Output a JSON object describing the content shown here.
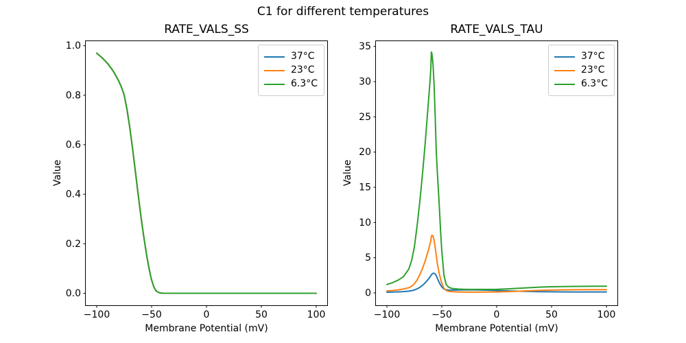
{
  "figure": {
    "suptitle": "C1 for different temperatures",
    "background": "#ffffff",
    "text_color": "#000000"
  },
  "chart_data": [
    {
      "type": "line",
      "title": "RATE_VALS_SS",
      "xlabel": "Membrane Potential (mV)",
      "ylabel": "Value",
      "xlim": [
        -110,
        110
      ],
      "ylim": [
        -0.0485,
        1.0185
      ],
      "grid": false,
      "legend_position": "upper-right",
      "xticks": {
        "values": [
          -100,
          -50,
          0,
          50,
          100
        ],
        "labels": [
          "−100",
          "−50",
          "0",
          "50",
          "100"
        ]
      },
      "yticks": {
        "values": [
          0,
          0.2,
          0.4,
          0.6,
          0.8,
          1.0
        ],
        "labels": [
          "0.0",
          "0.2",
          "0.4",
          "0.6",
          "0.8",
          "1.0"
        ]
      },
      "x": [
        -100,
        -95,
        -90,
        -85,
        -80,
        -77.5,
        -75,
        -72.5,
        -70,
        -67.5,
        -65,
        -62.5,
        -61,
        -60,
        -59.5,
        -59,
        -58,
        -57,
        -56,
        -55,
        -54,
        -52.5,
        -51,
        -50,
        -48,
        -46,
        -44,
        -42,
        -40,
        -35,
        -30,
        -25,
        -20,
        -10,
        0,
        10,
        20,
        30,
        40,
        50,
        60,
        70,
        80,
        90,
        100
      ],
      "series": [
        {
          "name": "37°C",
          "color": "#1f77b4",
          "values": [
            0.97,
            0.951,
            0.928,
            0.898,
            0.858,
            0.833,
            0.801,
            0.745,
            0.673,
            0.59,
            0.5,
            0.408,
            0.355,
            0.32,
            0.303,
            0.287,
            0.255,
            0.225,
            0.196,
            0.168,
            0.141,
            0.104,
            0.072,
            0.054,
            0.026,
            0.01,
            0.004,
            0.001,
            0.0005,
            0.0001,
            0,
            0,
            0,
            0,
            0,
            0,
            0,
            0,
            0,
            0,
            0,
            0,
            0,
            0,
            0
          ]
        },
        {
          "name": "23°C",
          "color": "#ff7f0e",
          "values": [
            0.97,
            0.951,
            0.928,
            0.898,
            0.858,
            0.833,
            0.801,
            0.745,
            0.673,
            0.59,
            0.5,
            0.408,
            0.355,
            0.32,
            0.303,
            0.287,
            0.255,
            0.225,
            0.196,
            0.168,
            0.141,
            0.104,
            0.072,
            0.054,
            0.026,
            0.01,
            0.004,
            0.001,
            0.0005,
            0.0001,
            0,
            0,
            0,
            0,
            0,
            0,
            0,
            0,
            0,
            0,
            0,
            0,
            0,
            0,
            0
          ]
        },
        {
          "name": "6.3°C",
          "color": "#2ca02c",
          "values": [
            0.97,
            0.951,
            0.928,
            0.898,
            0.858,
            0.833,
            0.801,
            0.745,
            0.673,
            0.59,
            0.5,
            0.408,
            0.355,
            0.32,
            0.303,
            0.287,
            0.255,
            0.225,
            0.196,
            0.168,
            0.141,
            0.104,
            0.072,
            0.054,
            0.026,
            0.01,
            0.004,
            0.001,
            0.0005,
            0.0001,
            0,
            0,
            0,
            0,
            0,
            0,
            0,
            0,
            0,
            0,
            0,
            0,
            0,
            0,
            0
          ]
        }
      ]
    },
    {
      "type": "line",
      "title": "RATE_VALS_TAU",
      "xlabel": "Membrane Potential (mV)",
      "ylabel": "Value",
      "xlim": [
        -110,
        110
      ],
      "ylim": [
        -1.75,
        35.75
      ],
      "grid": false,
      "legend_position": "upper-right",
      "xticks": {
        "values": [
          -100,
          -50,
          0,
          50,
          100
        ],
        "labels": [
          "−100",
          "−50",
          "0",
          "50",
          "100"
        ]
      },
      "yticks": {
        "values": [
          0,
          5,
          10,
          15,
          20,
          25,
          30,
          35
        ],
        "labels": [
          "0",
          "5",
          "10",
          "15",
          "20",
          "25",
          "30",
          "35"
        ]
      },
      "x": [
        -100,
        -95,
        -90,
        -85,
        -80,
        -77.5,
        -75,
        -72.5,
        -70,
        -67.5,
        -65,
        -62.5,
        -61,
        -60,
        -59.5,
        -59,
        -58,
        -57,
        -56,
        -55,
        -54,
        -52.5,
        -51,
        -50,
        -48,
        -46,
        -44,
        -42,
        -40,
        -35,
        -30,
        -25,
        -20,
        -10,
        0,
        10,
        20,
        30,
        40,
        50,
        60,
        70,
        80,
        90,
        100
      ],
      "series": [
        {
          "name": "37°C",
          "color": "#1f77b4",
          "values": [
            0.1,
            0.12,
            0.15,
            0.19,
            0.26,
            0.32,
            0.42,
            0.58,
            0.8,
            1.08,
            1.45,
            1.9,
            2.2,
            2.45,
            2.57,
            2.67,
            2.78,
            2.8,
            2.7,
            2.45,
            2.05,
            1.55,
            1.1,
            0.85,
            0.55,
            0.45,
            0.42,
            0.41,
            0.41,
            0.42,
            0.43,
            0.44,
            0.43,
            0.4,
            0.35,
            0.3,
            0.25,
            0.21,
            0.18,
            0.16,
            0.15,
            0.14,
            0.14,
            0.14,
            0.14
          ]
        },
        {
          "name": "23°C",
          "color": "#ff7f0e",
          "values": [
            0.3,
            0.35,
            0.43,
            0.55,
            0.75,
            0.95,
            1.3,
            1.85,
            2.6,
            3.5,
            4.6,
            5.9,
            6.8,
            7.4,
            8.0,
            8.2,
            8.1,
            7.5,
            6.5,
            5.3,
            4.1,
            2.9,
            1.9,
            1.4,
            0.65,
            0.35,
            0.25,
            0.2,
            0.17,
            0.14,
            0.12,
            0.11,
            0.11,
            0.12,
            0.15,
            0.19,
            0.25,
            0.31,
            0.37,
            0.41,
            0.44,
            0.45,
            0.46,
            0.46,
            0.46
          ]
        },
        {
          "name": "6.3°C",
          "color": "#2ca02c",
          "values": [
            1.2,
            1.45,
            1.8,
            2.3,
            3.4,
            4.6,
            6.5,
            9.5,
            13.0,
            17.0,
            21.5,
            26.5,
            29.5,
            31.8,
            34.2,
            34.0,
            32.5,
            29.5,
            25.0,
            20.0,
            17.0,
            13.0,
            8.5,
            6.0,
            2.5,
            1.2,
            0.85,
            0.7,
            0.62,
            0.55,
            0.52,
            0.5,
            0.5,
            0.5,
            0.52,
            0.58,
            0.66,
            0.75,
            0.83,
            0.88,
            0.91,
            0.93,
            0.94,
            0.95,
            0.95
          ]
        }
      ]
    }
  ]
}
